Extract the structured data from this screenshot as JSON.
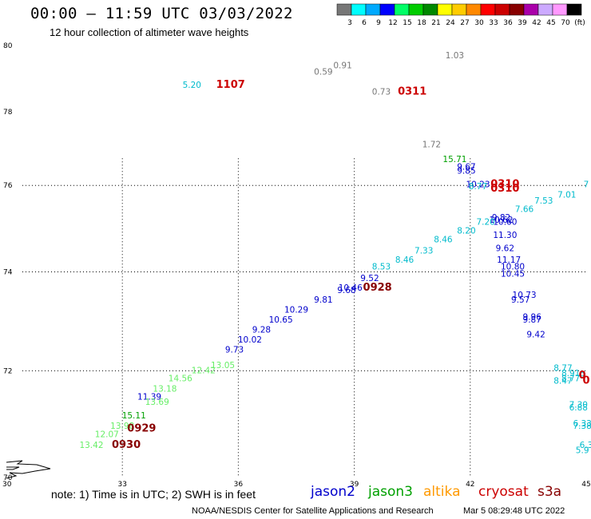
{
  "title": "00:00 – 11:59 UTC 03/03/2022",
  "subtitle": "12 hour collection of altimeter wave heights",
  "note": "note: 1) Time is in UTC; 2) SWH is in feet",
  "footer_left": "NOAA/NESDIS Center for Satellite Applications and Research",
  "footer_right": "Mar  5 08:29:48 UTC 2022",
  "satellites": [
    {
      "name": "jason2",
      "color": "#0000cc"
    },
    {
      "name": "jason3",
      "color": "#00a000"
    },
    {
      "name": "altika",
      "color": "#ff9900"
    },
    {
      "name": "cryosat",
      "color": "#cc0000"
    },
    {
      "name": "s3a",
      "color": "#880000"
    }
  ],
  "colorbar": {
    "labels": [
      "3",
      "6",
      "9",
      "12",
      "15",
      "18",
      "21",
      "24",
      "27",
      "30",
      "33",
      "36",
      "39",
      "42",
      "45",
      "70",
      "(ft)"
    ],
    "colors": [
      "#777777",
      "#00ffff",
      "#00aaff",
      "#0000ff",
      "#00ff66",
      "#00cc00",
      "#008800",
      "#ffff00",
      "#ffcc00",
      "#ff8800",
      "#ff0000",
      "#cc0000",
      "#880000",
      "#aa00aa",
      "#ccaaff",
      "#ff99ff",
      "#000000"
    ]
  },
  "chart_data": {
    "type": "scatter",
    "title": "00:00 – 11:59 UTC 03/03/2022",
    "xlabel": "",
    "ylabel": "",
    "xlim": [
      30,
      45
    ],
    "ylim": [
      70,
      80
    ],
    "x_ticks": [
      30,
      33,
      36,
      39,
      42,
      45
    ],
    "y_ticks": [
      70,
      72,
      74,
      76,
      78,
      80
    ],
    "grid": true,
    "legend": "bottom",
    "wave_heights_ft": [
      {
        "lon": 41.6,
        "lat": 79.6,
        "value": "1.03",
        "color": "#777777"
      },
      {
        "lon": 38.7,
        "lat": 79.3,
        "value": "0.91",
        "color": "#777777"
      },
      {
        "lon": 38.2,
        "lat": 79.1,
        "value": "0.59",
        "color": "#777777"
      },
      {
        "lon": 36.0,
        "lat": 78.8,
        "value": "",
        "color": "#777777"
      },
      {
        "lon": 34.8,
        "lat": 78.7,
        "value": "5.20",
        "color": "#00bbcc"
      },
      {
        "lon": 39.7,
        "lat": 78.5,
        "value": "0.73",
        "color": "#777777"
      },
      {
        "lon": 41.0,
        "lat": 77.0,
        "value": "1.72",
        "color": "#777777"
      },
      {
        "lon": 41.6,
        "lat": 76.6,
        "value": "15.71",
        "color": "#00a000"
      },
      {
        "lon": 41.9,
        "lat": 76.4,
        "value": "9.67",
        "color": "#0000cc"
      },
      {
        "lon": 41.9,
        "lat": 76.3,
        "value": "9.85",
        "color": "#0000cc"
      },
      {
        "lon": 42.2,
        "lat": 75.95,
        "value": "10.23",
        "color": "#0000cc"
      },
      {
        "lon": 42.2,
        "lat": 75.9,
        "value": "8.77",
        "color": "#00bbcc"
      },
      {
        "lon": 45.0,
        "lat": 75.95,
        "value": "7",
        "color": "#00bbcc"
      },
      {
        "lon": 44.5,
        "lat": 75.7,
        "value": "7.01",
        "color": "#00bbcc"
      },
      {
        "lon": 43.9,
        "lat": 75.55,
        "value": "7.53",
        "color": "#00bbcc"
      },
      {
        "lon": 43.4,
        "lat": 75.35,
        "value": "7.66",
        "color": "#00bbcc"
      },
      {
        "lon": 42.8,
        "lat": 75.15,
        "value": "9.82",
        "color": "#0000cc"
      },
      {
        "lon": 42.8,
        "lat": 75.1,
        "value": "10.62",
        "color": "#0000cc"
      },
      {
        "lon": 42.9,
        "lat": 75.05,
        "value": "10.60",
        "color": "#0000cc"
      },
      {
        "lon": 42.4,
        "lat": 75.05,
        "value": "7.20",
        "color": "#00bbcc"
      },
      {
        "lon": 41.9,
        "lat": 74.85,
        "value": "8.20",
        "color": "#00bbcc"
      },
      {
        "lon": 42.9,
        "lat": 74.75,
        "value": "11.30",
        "color": "#0000cc"
      },
      {
        "lon": 41.3,
        "lat": 74.65,
        "value": "8.46",
        "color": "#00bbcc"
      },
      {
        "lon": 42.9,
        "lat": 74.45,
        "value": "9.62",
        "color": "#0000cc"
      },
      {
        "lon": 40.8,
        "lat": 74.4,
        "value": "7.33",
        "color": "#00bbcc"
      },
      {
        "lon": 43.0,
        "lat": 74.2,
        "value": "11.17",
        "color": "#0000cc"
      },
      {
        "lon": 40.3,
        "lat": 74.2,
        "value": "8.46",
        "color": "#00bbcc"
      },
      {
        "lon": 43.1,
        "lat": 74.05,
        "value": "10.80",
        "color": "#0000cc"
      },
      {
        "lon": 39.7,
        "lat": 74.05,
        "value": "8.53",
        "color": "#00bbcc"
      },
      {
        "lon": 43.1,
        "lat": 73.9,
        "value": "10.45",
        "color": "#0000cc"
      },
      {
        "lon": 39.4,
        "lat": 73.8,
        "value": "9.52",
        "color": "#0000cc"
      },
      {
        "lon": 38.9,
        "lat": 73.6,
        "value": "10.46",
        "color": "#0000cc"
      },
      {
        "lon": 38.8,
        "lat": 73.55,
        "value": "9.68",
        "color": "#0000cc"
      },
      {
        "lon": 43.4,
        "lat": 73.45,
        "value": "10.73",
        "color": "#0000cc"
      },
      {
        "lon": 43.3,
        "lat": 73.35,
        "value": "9.57",
        "color": "#0000cc"
      },
      {
        "lon": 38.2,
        "lat": 73.35,
        "value": "9.81",
        "color": "#0000cc"
      },
      {
        "lon": 37.5,
        "lat": 73.15,
        "value": "10.29",
        "color": "#0000cc"
      },
      {
        "lon": 43.6,
        "lat": 73.0,
        "value": "9.96",
        "color": "#0000cc"
      },
      {
        "lon": 43.6,
        "lat": 72.95,
        "value": "9.87",
        "color": "#0000cc"
      },
      {
        "lon": 37.1,
        "lat": 72.95,
        "value": "10.65",
        "color": "#0000cc"
      },
      {
        "lon": 43.7,
        "lat": 72.65,
        "value": "9.42",
        "color": "#0000cc"
      },
      {
        "lon": 36.6,
        "lat": 72.75,
        "value": "9.28",
        "color": "#0000cc"
      },
      {
        "lon": 36.3,
        "lat": 72.55,
        "value": "10.02",
        "color": "#0000cc"
      },
      {
        "lon": 35.9,
        "lat": 72.35,
        "value": "9.73",
        "color": "#0000cc"
      },
      {
        "lon": 35.6,
        "lat": 72.05,
        "value": "13.05",
        "color": "#66ee66"
      },
      {
        "lon": 44.4,
        "lat": 72.0,
        "value": "8.77",
        "color": "#00bbcc"
      },
      {
        "lon": 35.1,
        "lat": 71.95,
        "value": "12.42",
        "color": "#66ee66"
      },
      {
        "lon": 44.6,
        "lat": 71.9,
        "value": "8.91",
        "color": "#00bbcc"
      },
      {
        "lon": 44.6,
        "lat": 71.8,
        "value": "8.77",
        "color": "#00bbcc"
      },
      {
        "lon": 44.4,
        "lat": 71.75,
        "value": "8.47",
        "color": "#00bbcc"
      },
      {
        "lon": 44.9,
        "lat": 71.85,
        "value": "9",
        "color": "#00bbcc"
      },
      {
        "lon": 34.5,
        "lat": 71.8,
        "value": "14.56",
        "color": "#66ee66"
      },
      {
        "lon": 34.1,
        "lat": 71.6,
        "value": "13.18",
        "color": "#66ee66"
      },
      {
        "lon": 33.7,
        "lat": 71.45,
        "value": "11.39",
        "color": "#0000cc"
      },
      {
        "lon": 33.9,
        "lat": 71.35,
        "value": "13.69",
        "color": "#66ee66"
      },
      {
        "lon": 44.8,
        "lat": 71.3,
        "value": "7.30",
        "color": "#00bbcc"
      },
      {
        "lon": 44.8,
        "lat": 71.25,
        "value": "6.88",
        "color": "#00bbcc"
      },
      {
        "lon": 33.3,
        "lat": 71.1,
        "value": "15.11",
        "color": "#00a000"
      },
      {
        "lon": 44.9,
        "lat": 70.95,
        "value": "6.33",
        "color": "#00bbcc"
      },
      {
        "lon": 44.9,
        "lat": 70.9,
        "value": "7.38",
        "color": "#00bbcc"
      },
      {
        "lon": 33.0,
        "lat": 70.9,
        "value": "13.98",
        "color": "#66ee66"
      },
      {
        "lon": 32.6,
        "lat": 70.75,
        "value": "12.07",
        "color": "#66ee66"
      },
      {
        "lon": 32.2,
        "lat": 70.55,
        "value": "13.42",
        "color": "#66ee66"
      },
      {
        "lon": 45.0,
        "lat": 70.55,
        "value": "6.3",
        "color": "#00bbcc"
      },
      {
        "lon": 44.9,
        "lat": 70.45,
        "value": "5.9",
        "color": "#00bbcc"
      }
    ],
    "pass_times_utc": [
      {
        "lon": 35.8,
        "lat": 78.7,
        "value": "1107",
        "color": "#cc0000"
      },
      {
        "lon": 40.5,
        "lat": 78.5,
        "value": "0311",
        "color": "#cc0000"
      },
      {
        "lon": 42.9,
        "lat": 75.95,
        "value": "0310",
        "color": "#cc0000"
      },
      {
        "lon": 42.9,
        "lat": 75.85,
        "value": "0310",
        "color": "#cc0000"
      },
      {
        "lon": 39.6,
        "lat": 73.6,
        "value": "0928",
        "color": "#880000"
      },
      {
        "lon": 44.9,
        "lat": 71.85,
        "value": "0",
        "color": "#cc0000"
      },
      {
        "lon": 45.0,
        "lat": 71.75,
        "value": "0",
        "color": "#cc0000"
      },
      {
        "lon": 33.5,
        "lat": 70.85,
        "value": "0929",
        "color": "#880000"
      },
      {
        "lon": 33.1,
        "lat": 70.55,
        "value": "0930",
        "color": "#880000"
      }
    ]
  }
}
